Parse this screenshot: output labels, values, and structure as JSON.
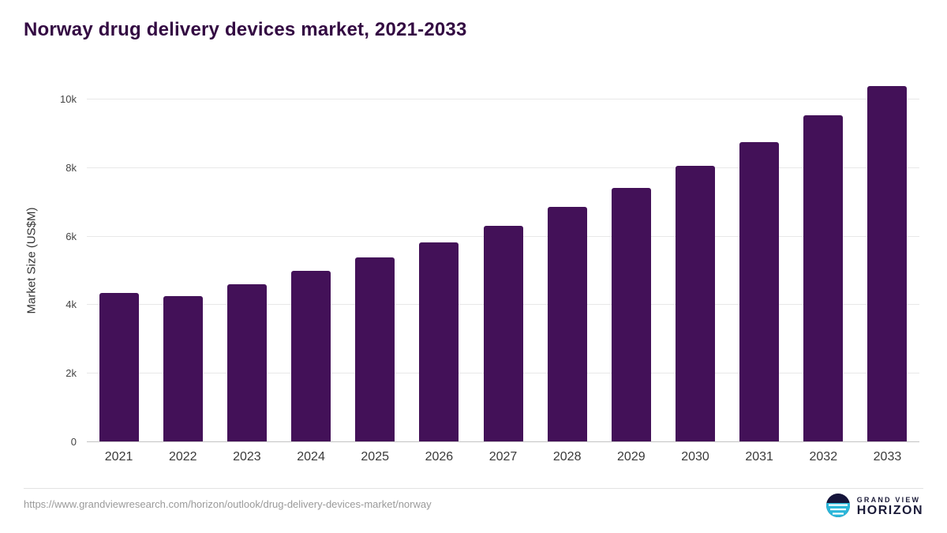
{
  "header": {
    "title": "Norway drug delivery devices market, 2021-2033"
  },
  "chart_data": {
    "type": "bar",
    "title": "Norway drug delivery devices market, 2021-2033",
    "categories": [
      "2021",
      "2022",
      "2023",
      "2024",
      "2025",
      "2026",
      "2027",
      "2028",
      "2029",
      "2030",
      "2031",
      "2032",
      "2033"
    ],
    "values": [
      4350,
      4260,
      4620,
      5000,
      5400,
      5840,
      6320,
      6860,
      7430,
      8060,
      8750,
      9550,
      10400
    ],
    "xlabel": "",
    "ylabel": "Market Size (US$M)",
    "ylim": [
      0,
      10600
    ],
    "yticks": [
      {
        "value": 0,
        "label": "0"
      },
      {
        "value": 2000,
        "label": "2k"
      },
      {
        "value": 4000,
        "label": "4k"
      },
      {
        "value": 6000,
        "label": "6k"
      },
      {
        "value": 8000,
        "label": "8k"
      },
      {
        "value": 10000,
        "label": "10k"
      }
    ],
    "bar_color": "#431158",
    "grid": "horizontal",
    "legend": "none"
  },
  "footer": {
    "source_url": "https://www.grandviewresearch.com/horizon/outlook/drug-delivery-devices-market/norway",
    "logo": {
      "line1": "GRAND VIEW",
      "line2": "HORIZON"
    }
  }
}
